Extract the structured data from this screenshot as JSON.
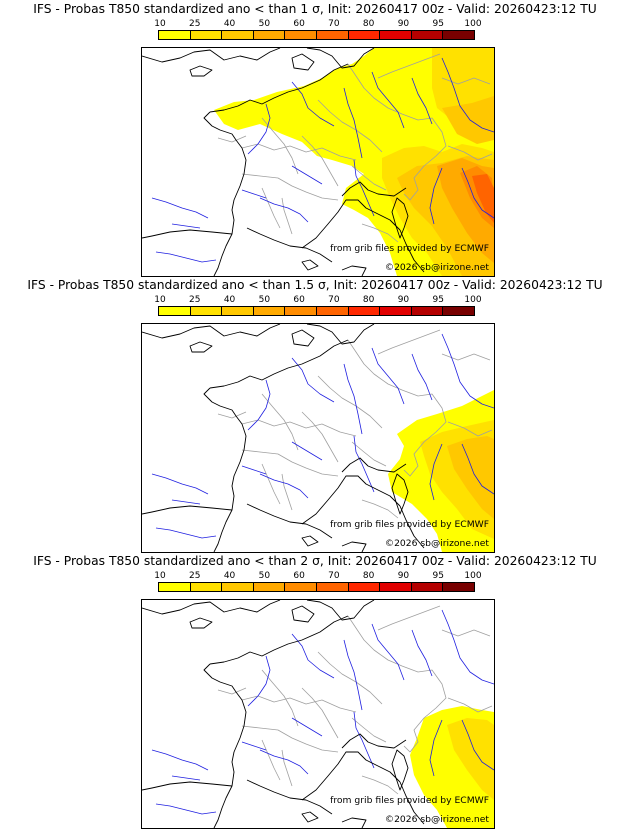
{
  "colorbar": {
    "ticks": [
      "10",
      "25",
      "40",
      "50",
      "60",
      "70",
      "80",
      "90",
      "95",
      "100"
    ],
    "colors": [
      "#ffff00",
      "#ffe100",
      "#ffc800",
      "#ffaa00",
      "#ff8c00",
      "#ff6400",
      "#ff2800",
      "#e10000",
      "#b40000",
      "#780000"
    ]
  },
  "styles": {
    "coast": "#000000",
    "rivers": "#2020e0",
    "borders": "#a0a0a0"
  },
  "panels": [
    {
      "title": "IFS - Probas T850  standardized ano < than 1 σ, Init: 20260417 00z - Valid: 20260423:12 TU",
      "level": "1 σ",
      "credit_grib": "from grib files provided by ECMWF",
      "credit_copy": "©2026 sb@irizone.net"
    },
    {
      "title": "IFS - Probas T850  standardized ano < than 1.5 σ, Init: 20260417 00z - Valid: 20260423:12 TU",
      "level": "1.5 σ",
      "credit_grib": "from grib files provided by ECMWF",
      "credit_copy": "©2026 sb@irizone.net"
    },
    {
      "title": "IFS - Probas T850  standardized ano < than 2 σ, Init: 20260417 00z - Valid: 20260423:12 TU",
      "level": "2 σ",
      "credit_grib": "from grib files provided by ECMWF",
      "credit_copy": "©2026 sb@irizone.net"
    }
  ]
}
